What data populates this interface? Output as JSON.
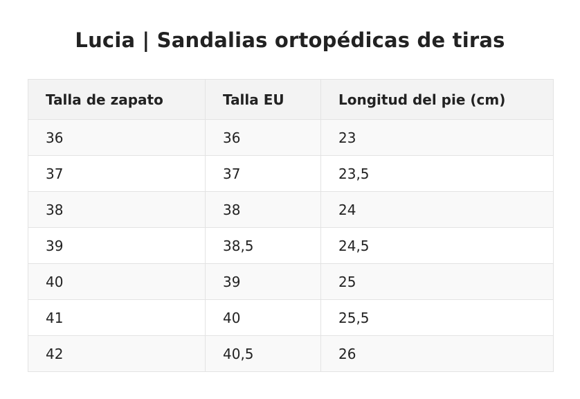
{
  "title": "Lucia | Sandalias ortopédicas de tiras",
  "table": {
    "headers": [
      "Talla de zapato",
      "Talla EU",
      "Longitud del pie (cm)"
    ],
    "rows": [
      [
        "36",
        "36",
        "23"
      ],
      [
        "37",
        "37",
        "23,5"
      ],
      [
        "38",
        "38",
        "24"
      ],
      [
        "39",
        "38,5",
        "24,5"
      ],
      [
        "40",
        "39",
        "25"
      ],
      [
        "41",
        "40",
        "25,5"
      ],
      [
        "42",
        "40,5",
        "26"
      ]
    ]
  }
}
